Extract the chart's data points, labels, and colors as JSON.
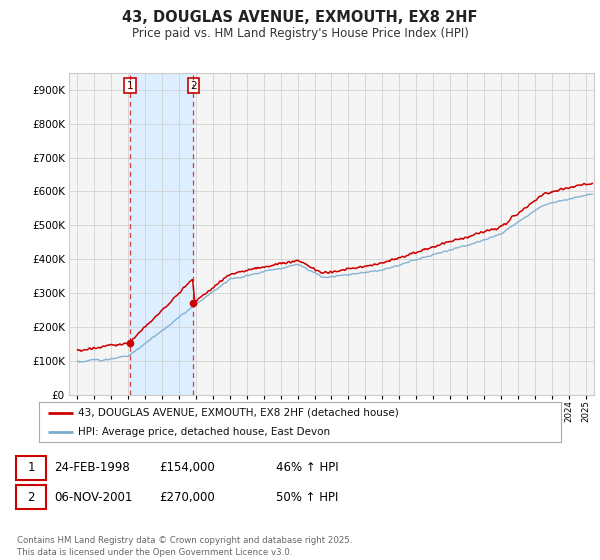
{
  "title": "43, DOUGLAS AVENUE, EXMOUTH, EX8 2HF",
  "subtitle": "Price paid vs. HM Land Registry's House Price Index (HPI)",
  "legend_line1": "43, DOUGLAS AVENUE, EXMOUTH, EX8 2HF (detached house)",
  "legend_line2": "HPI: Average price, detached house, East Devon",
  "table_row1": [
    "1",
    "24-FEB-1998",
    "£154,000",
    "46% ↑ HPI"
  ],
  "table_row2": [
    "2",
    "06-NOV-2001",
    "£270,000",
    "50% ↑ HPI"
  ],
  "footer": "Contains HM Land Registry data © Crown copyright and database right 2025.\nThis data is licensed under the Open Government Licence v3.0.",
  "sale1_date_num": 1998.12,
  "sale1_price": 154000,
  "sale2_date_num": 2001.85,
  "sale2_price": 270000,
  "red_color": "#cc0000",
  "blue_color": "#7aadcf",
  "shade_color": "#ddeeff",
  "background_color": "#f5f5f5",
  "grid_color": "#cccccc",
  "ylim": [
    0,
    950000
  ],
  "xlim_start": 1994.5,
  "xlim_end": 2025.5
}
